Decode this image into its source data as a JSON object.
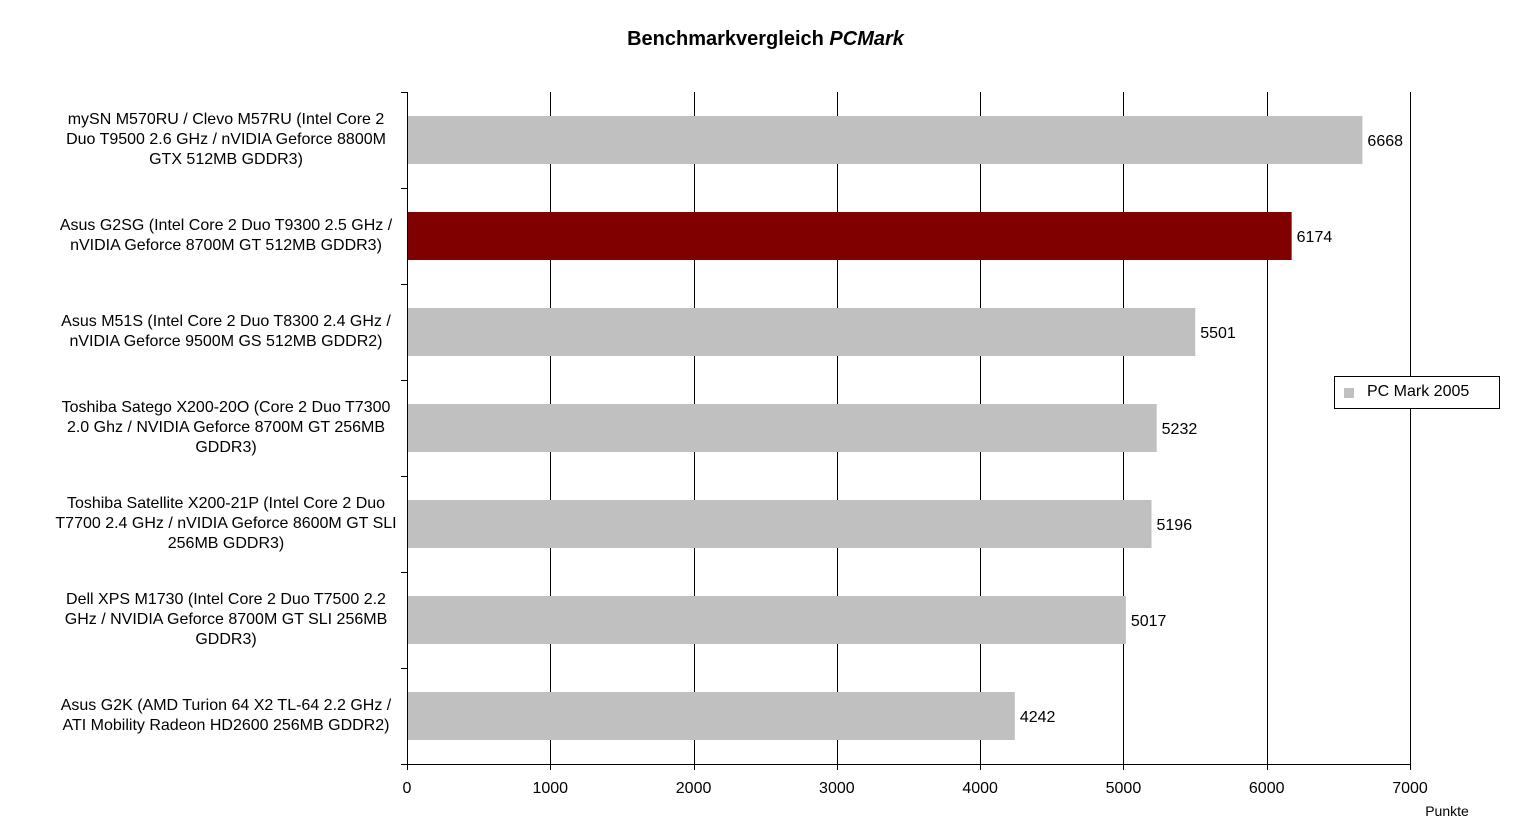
{
  "chart_data": {
    "type": "bar",
    "orientation": "horizontal",
    "title": "Benchmarkvergleich",
    "title_emphasis": "PCMark",
    "xlabel": "Punkte",
    "xlim": [
      0,
      7000
    ],
    "xticks": [
      0,
      1000,
      2000,
      3000,
      4000,
      5000,
      6000,
      7000
    ],
    "grid": true,
    "legend_position": "right",
    "highlight_color": "#800000",
    "bar_color": "#c0c0c0",
    "series": [
      {
        "name": "PC Mark 2005",
        "values": [
          6668,
          6174,
          5501,
          5232,
          5196,
          5017,
          4242
        ]
      }
    ],
    "categories": [
      [
        "mySN M570RU / Clevo M57RU (Intel Core 2",
        "Duo T9500 2.6 GHz / nVIDIA Geforce 8800M",
        "GTX 512MB GDDR3)"
      ],
      [
        "Asus G2SG (Intel Core 2 Duo T9300 2.5 GHz /",
        "nVIDIA Geforce 8700M GT 512MB GDDR3)"
      ],
      [
        "Asus M51S (Intel Core 2 Duo T8300 2.4 GHz /",
        "nVIDIA Geforce 9500M GS 512MB GDDR2)"
      ],
      [
        "Toshiba Satego X200-20O (Core 2 Duo T7300",
        "2.0 Ghz / NVIDIA Geforce 8700M GT 256MB",
        "GDDR3)"
      ],
      [
        "Toshiba Satellite X200-21P (Intel Core 2 Duo",
        "T7700 2.4 GHz / nVIDIA Geforce 8600M GT SLI",
        "256MB GDDR3)"
      ],
      [
        "Dell XPS M1730 (Intel Core 2 Duo T7500  2.2",
        "GHz / NVIDIA Geforce 8700M GT SLI 256MB",
        "GDDR3)"
      ],
      [
        "Asus G2K (AMD Turion 64 X2 TL-64 2.2 GHz /",
        "ATI Mobility Radeon HD2600 256MB GDDR2)"
      ]
    ],
    "highlight_index": 1
  }
}
